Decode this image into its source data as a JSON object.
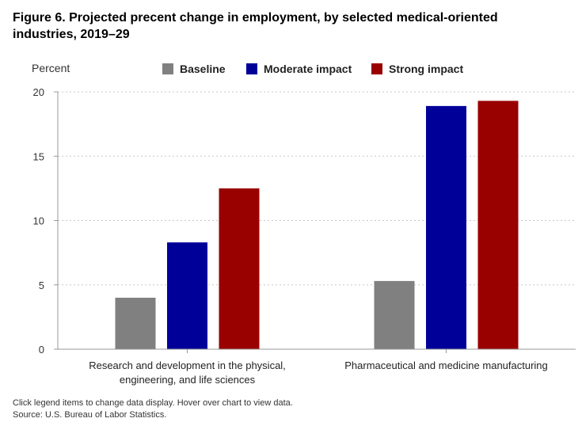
{
  "title_line1": "Figure 6. Projected precent change in employment, by selected medical-oriented",
  "title_line2": "industries, 2019–29",
  "footer": {
    "note": "Click legend items to change data display. Hover over chart to view data.",
    "source": "Source: U.S. Bureau of Labor Statistics."
  },
  "chart_data": {
    "type": "bar",
    "ylabel": "Percent",
    "ylim": [
      0,
      20
    ],
    "yticks": [
      0,
      5,
      10,
      15,
      20
    ],
    "grid": true,
    "legend_position": "top",
    "categories": [
      [
        "Research and development in the physical,",
        "engineering, and life sciences"
      ],
      [
        "Pharmaceutical and medicine manufacturing"
      ]
    ],
    "series": [
      {
        "name": "Baseline",
        "color": "#808080",
        "values": [
          4.0,
          5.3
        ]
      },
      {
        "name": "Moderate impact",
        "color": "#000099",
        "values": [
          8.3,
          18.9
        ]
      },
      {
        "name": "Strong impact",
        "color": "#990000",
        "values": [
          12.5,
          19.3
        ]
      }
    ]
  }
}
